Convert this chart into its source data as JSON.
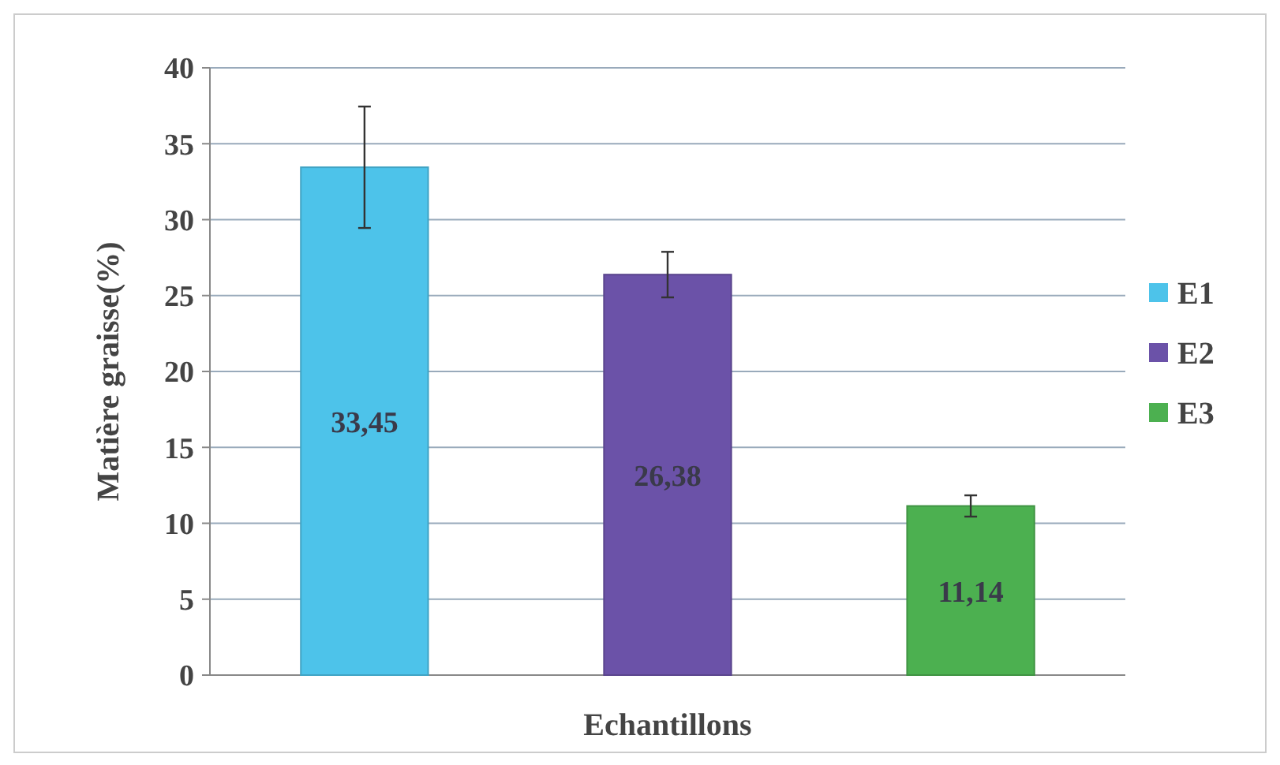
{
  "chart_data": {
    "type": "bar",
    "xlabel": "Echantillons",
    "ylabel": "Matière graisse(%)",
    "categories": [
      null,
      null,
      null
    ],
    "series": [
      {
        "name": "E1",
        "color": "#4dc3ea",
        "values": [
          33.45,
          null,
          null
        ],
        "errors": [
          4,
          null,
          null
        ],
        "value_labels": [
          "33,45",
          null,
          null
        ]
      },
      {
        "name": "E2",
        "color": "#6b52a8",
        "values": [
          null,
          26.38,
          null
        ],
        "errors": [
          null,
          1.5,
          null
        ],
        "value_labels": [
          null,
          "26,38",
          null
        ]
      },
      {
        "name": "E3",
        "color": "#4cb050",
        "values": [
          null,
          null,
          11.14
        ],
        "errors": [
          null,
          null,
          0.7
        ],
        "value_labels": [
          null,
          null,
          "11,14"
        ]
      }
    ],
    "ylim": [
      0,
      40
    ],
    "yticks": [
      0,
      5,
      10,
      15,
      20,
      25,
      30,
      35,
      40
    ],
    "grid": "y",
    "legend": "right"
  }
}
